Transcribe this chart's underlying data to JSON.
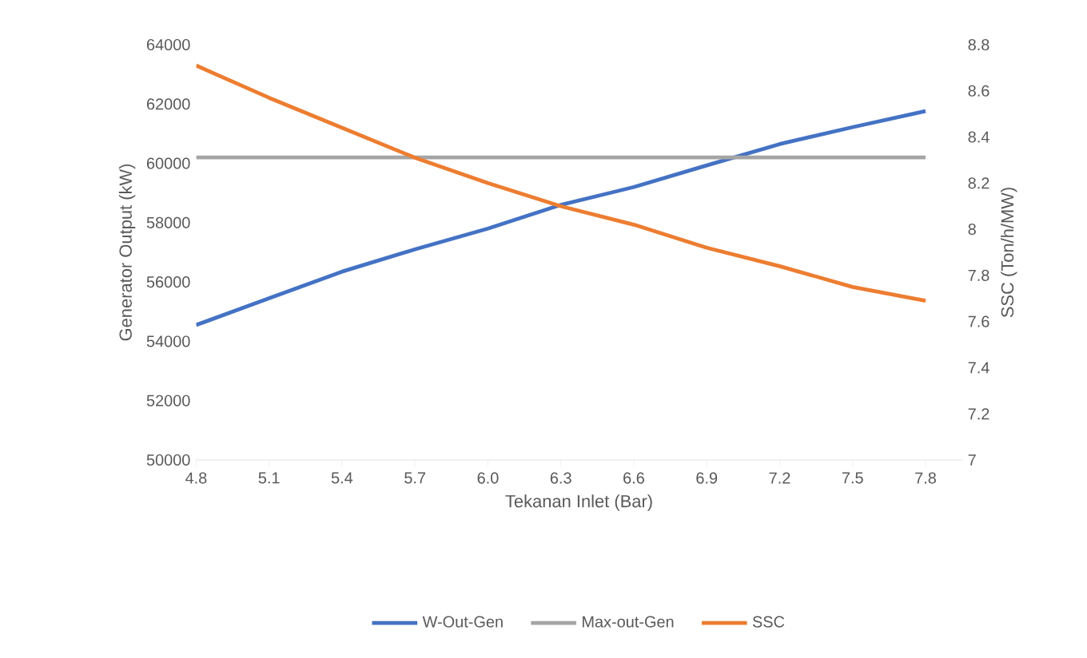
{
  "chart_data": {
    "type": "line",
    "xlabel": "Tekanan Inlet (Bar)",
    "ylabel": "Generator Output (kW)",
    "y2label": "SSC (Ton/h/MW)",
    "categories": [
      "4.8",
      "5.1",
      "5.4",
      "5.7",
      "6.0",
      "6.3",
      "6.6",
      "6.9",
      "7.2",
      "7.5",
      "7.8"
    ],
    "series": [
      {
        "name": "W-Out-Gen",
        "color": "#4472c4",
        "values": [
          54550,
          55450,
          56350,
          57100,
          57800,
          58600,
          59200,
          59930,
          60650,
          61220,
          61760
        ]
      },
      {
        "name": "Max-out-Gen",
        "color": "#a5a5a5",
        "values": [
          60200,
          60200,
          60200,
          60200,
          60200,
          60200,
          60200,
          60200,
          60200,
          60200,
          60200
        ]
      },
      {
        "name": "SSC",
        "color": "#ed7d31",
        "axis": "y2",
        "values": [
          8.71,
          8.57,
          8.44,
          8.31,
          8.2,
          8.1,
          8.02,
          7.92,
          7.84,
          7.75,
          7.69
        ]
      }
    ],
    "ylim": [
      50000,
      64000
    ],
    "yticks": [
      50000,
      52000,
      54000,
      56000,
      58000,
      60000,
      62000,
      64000
    ],
    "y2lim": [
      7,
      8.8
    ],
    "y2ticks": [
      7,
      7.2,
      7.4,
      7.6,
      7.8,
      8,
      8.2,
      8.4,
      8.6,
      8.8
    ],
    "legend": "bottom"
  }
}
